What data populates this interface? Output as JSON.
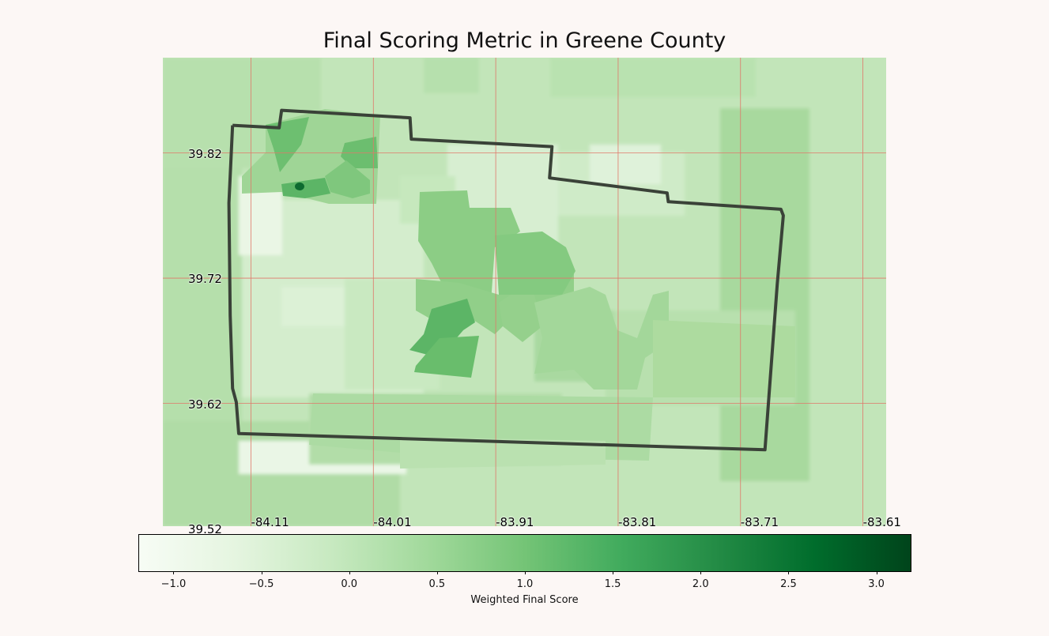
{
  "chart_data": {
    "type": "heatmap",
    "title": "Final Scoring Metric in Greene County",
    "colormap": "Greens",
    "colorbar": {
      "label": "Weighted Final Score",
      "range": [
        -1.2,
        3.2
      ],
      "ticks": [
        -1.0,
        -0.5,
        0.0,
        0.5,
        1.0,
        1.5,
        2.0,
        2.5,
        3.0
      ],
      "tick_labels": [
        "−1.0",
        "−0.5",
        "0.0",
        "0.5",
        "1.0",
        "1.5",
        "2.0",
        "2.5",
        "3.0"
      ]
    },
    "lat_ticks": [
      39.82,
      39.72,
      39.62,
      39.52
    ],
    "lat_labels": [
      "39.82",
      "39.72",
      "39.62",
      "39.52"
    ],
    "lon_ticks": [
      -84.11,
      -84.01,
      -83.91,
      -83.81,
      -83.71,
      -83.61
    ],
    "lon_labels": [
      "-84.11",
      "-84.01",
      "-83.91",
      "-83.81",
      "-83.71",
      "-83.61"
    ],
    "lon_range": [
      -84.182,
      -83.591
    ],
    "lat_range": [
      39.522,
      39.896
    ],
    "grid": true,
    "grid_color": "#e0786a",
    "boundary_color": "#3a4238",
    "county_outline": [
      [
        -84.125,
        39.842
      ],
      [
        -84.087,
        39.84
      ],
      [
        -84.085,
        39.854
      ],
      [
        -83.98,
        39.848
      ],
      [
        -83.979,
        39.831
      ],
      [
        -83.864,
        39.825
      ],
      [
        -83.866,
        39.8
      ],
      [
        -83.77,
        39.788
      ],
      [
        -83.769,
        39.781
      ],
      [
        -83.677,
        39.775
      ],
      [
        -83.675,
        39.77
      ],
      [
        -83.68,
        39.715
      ],
      [
        -83.69,
        39.583
      ],
      [
        -84.12,
        39.596
      ],
      [
        -84.122,
        39.621
      ],
      [
        -84.125,
        39.632
      ],
      [
        -84.127,
        39.69
      ],
      [
        -84.128,
        39.78
      ],
      [
        -84.125,
        39.842
      ]
    ]
  }
}
